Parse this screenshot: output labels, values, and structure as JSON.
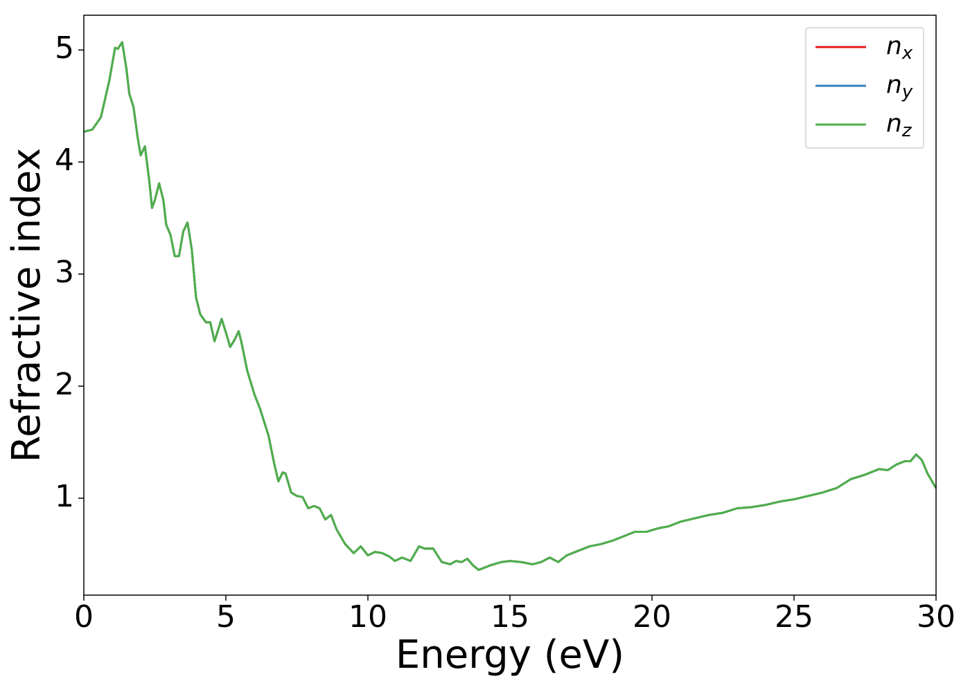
{
  "chart_data": {
    "type": "line",
    "xlabel": "Energy (eV)",
    "ylabel": "Refractive index",
    "xlim": [
      0,
      30
    ],
    "xticks": [
      0,
      5,
      10,
      15,
      20,
      25,
      30
    ],
    "ylim": [
      0.135,
      5.31
    ],
    "yticks": [
      1,
      2,
      3,
      4,
      5
    ],
    "legend": "upper right",
    "x": [
      0,
      0.3,
      0.6,
      0.9,
      1.1,
      1.2,
      1.35,
      1.5,
      1.6,
      1.75,
      1.9,
      2.0,
      2.15,
      2.3,
      2.4,
      2.5,
      2.65,
      2.8,
      2.9,
      3.05,
      3.2,
      3.35,
      3.5,
      3.65,
      3.8,
      3.95,
      4.1,
      4.3,
      4.45,
      4.6,
      4.7,
      4.85,
      5.0,
      5.15,
      5.3,
      5.45,
      5.55,
      5.75,
      6.0,
      6.2,
      6.5,
      6.7,
      6.85,
      7.0,
      7.1,
      7.3,
      7.5,
      7.7,
      7.9,
      8.1,
      8.3,
      8.5,
      8.7,
      8.9,
      9.2,
      9.5,
      9.75,
      10.0,
      10.25,
      10.5,
      10.75,
      10.95,
      11.2,
      11.5,
      11.8,
      12.0,
      12.3,
      12.6,
      12.9,
      13.1,
      13.3,
      13.5,
      13.7,
      13.9,
      14.3,
      14.7,
      15.0,
      15.4,
      15.8,
      16.1,
      16.4,
      16.7,
      17.0,
      17.5,
      17.8,
      18.2,
      18.6,
      19.0,
      19.4,
      19.8,
      20.2,
      20.6,
      21.0,
      21.5,
      22.0,
      22.5,
      23.0,
      23.5,
      24.0,
      24.5,
      25.0,
      25.5,
      26.0,
      26.5,
      27.0,
      27.5,
      28.0,
      28.3,
      28.6,
      28.9,
      29.1,
      29.3,
      29.5,
      29.7,
      30.0
    ],
    "series": [
      {
        "name": "nx",
        "color": "#e41a1c",
        "values": [
          4.27,
          4.29,
          4.4,
          4.73,
          5.02,
          5.01,
          5.07,
          4.83,
          4.61,
          4.49,
          4.21,
          4.06,
          4.14,
          3.84,
          3.59,
          3.66,
          3.81,
          3.66,
          3.44,
          3.35,
          3.16,
          3.16,
          3.38,
          3.46,
          3.22,
          2.79,
          2.64,
          2.57,
          2.57,
          2.4,
          2.48,
          2.6,
          2.48,
          2.35,
          2.41,
          2.49,
          2.39,
          2.14,
          1.93,
          1.8,
          1.56,
          1.31,
          1.15,
          1.23,
          1.22,
          1.05,
          1.02,
          1.01,
          0.91,
          0.93,
          0.91,
          0.81,
          0.85,
          0.72,
          0.59,
          0.51,
          0.57,
          0.49,
          0.52,
          0.51,
          0.48,
          0.44,
          0.47,
          0.44,
          0.57,
          0.55,
          0.55,
          0.43,
          0.41,
          0.44,
          0.43,
          0.46,
          0.4,
          0.36,
          0.4,
          0.43,
          0.44,
          0.43,
          0.41,
          0.43,
          0.47,
          0.43,
          0.49,
          0.54,
          0.57,
          0.59,
          0.62,
          0.66,
          0.7,
          0.7,
          0.73,
          0.75,
          0.79,
          0.82,
          0.85,
          0.87,
          0.91,
          0.92,
          0.94,
          0.97,
          0.99,
          1.02,
          1.05,
          1.09,
          1.17,
          1.21,
          1.26,
          1.25,
          1.3,
          1.33,
          1.33,
          1.39,
          1.34,
          1.22,
          1.09
        ]
      },
      {
        "name": "ny",
        "color": "#377eb8",
        "values": [
          4.27,
          4.29,
          4.4,
          4.73,
          5.02,
          5.01,
          5.07,
          4.83,
          4.61,
          4.49,
          4.21,
          4.06,
          4.14,
          3.84,
          3.59,
          3.66,
          3.81,
          3.66,
          3.44,
          3.35,
          3.16,
          3.16,
          3.38,
          3.46,
          3.22,
          2.79,
          2.64,
          2.57,
          2.57,
          2.4,
          2.48,
          2.6,
          2.48,
          2.35,
          2.41,
          2.49,
          2.39,
          2.14,
          1.93,
          1.8,
          1.56,
          1.31,
          1.15,
          1.23,
          1.22,
          1.05,
          1.02,
          1.01,
          0.91,
          0.93,
          0.91,
          0.81,
          0.85,
          0.72,
          0.59,
          0.51,
          0.57,
          0.49,
          0.52,
          0.51,
          0.48,
          0.44,
          0.47,
          0.44,
          0.57,
          0.55,
          0.55,
          0.43,
          0.41,
          0.44,
          0.43,
          0.46,
          0.4,
          0.36,
          0.4,
          0.43,
          0.44,
          0.43,
          0.41,
          0.43,
          0.47,
          0.43,
          0.49,
          0.54,
          0.57,
          0.59,
          0.62,
          0.66,
          0.7,
          0.7,
          0.73,
          0.75,
          0.79,
          0.82,
          0.85,
          0.87,
          0.91,
          0.92,
          0.94,
          0.97,
          0.99,
          1.02,
          1.05,
          1.09,
          1.17,
          1.21,
          1.26,
          1.25,
          1.3,
          1.33,
          1.33,
          1.39,
          1.34,
          1.22,
          1.09
        ]
      },
      {
        "name": "nz",
        "color": "#4daf4a",
        "values": [
          4.27,
          4.29,
          4.4,
          4.73,
          5.02,
          5.01,
          5.07,
          4.83,
          4.61,
          4.49,
          4.21,
          4.06,
          4.14,
          3.84,
          3.59,
          3.66,
          3.81,
          3.66,
          3.44,
          3.35,
          3.16,
          3.16,
          3.38,
          3.46,
          3.22,
          2.79,
          2.64,
          2.57,
          2.57,
          2.4,
          2.48,
          2.6,
          2.48,
          2.35,
          2.41,
          2.49,
          2.39,
          2.14,
          1.93,
          1.8,
          1.56,
          1.31,
          1.15,
          1.23,
          1.22,
          1.05,
          1.02,
          1.01,
          0.91,
          0.93,
          0.91,
          0.81,
          0.85,
          0.72,
          0.59,
          0.51,
          0.57,
          0.49,
          0.52,
          0.51,
          0.48,
          0.44,
          0.47,
          0.44,
          0.57,
          0.55,
          0.55,
          0.43,
          0.41,
          0.44,
          0.43,
          0.46,
          0.4,
          0.36,
          0.4,
          0.43,
          0.44,
          0.43,
          0.41,
          0.43,
          0.47,
          0.43,
          0.49,
          0.54,
          0.57,
          0.59,
          0.62,
          0.66,
          0.7,
          0.7,
          0.73,
          0.75,
          0.79,
          0.82,
          0.85,
          0.87,
          0.91,
          0.92,
          0.94,
          0.97,
          0.99,
          1.02,
          1.05,
          1.09,
          1.17,
          1.21,
          1.26,
          1.25,
          1.3,
          1.33,
          1.33,
          1.39,
          1.34,
          1.22,
          1.09
        ]
      }
    ]
  }
}
